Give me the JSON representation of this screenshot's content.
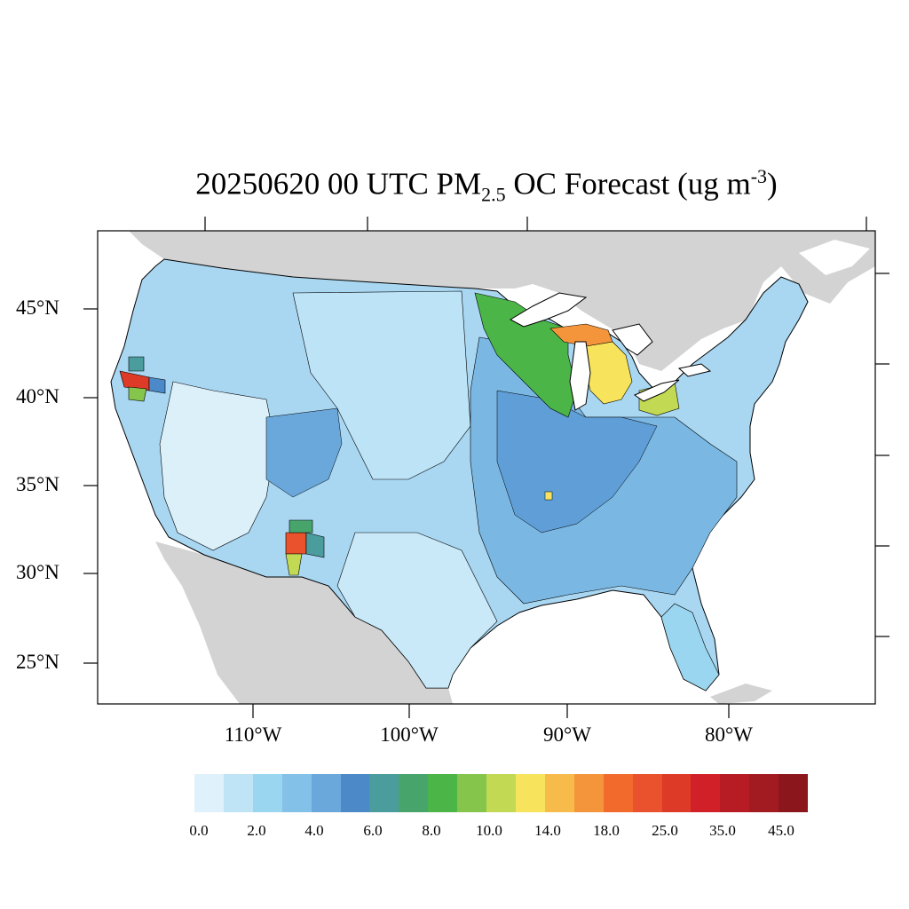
{
  "map": {
    "title_prefix": "20250620 00 UTC PM",
    "title_sub": "2.5",
    "title_mid": " OC Forecast (ug m",
    "title_sup": "-3",
    "title_suffix": ")",
    "lat_labels": [
      "45°N",
      "40°N",
      "35°N",
      "30°N",
      "25°N"
    ],
    "lon_labels": [
      "110°W",
      "100°W",
      "90°W",
      "80°W"
    ],
    "land_color": "#d3d3d3",
    "ocean_color": "#ffffff"
  },
  "legend": {
    "labels": [
      "0.0",
      "2.0",
      "4.0",
      "6.0",
      "8.0",
      "10.0",
      "14.0",
      "18.0",
      "25.0",
      "35.0",
      "45.0"
    ],
    "colors": [
      "#dff1fb",
      "#bfe4f6",
      "#9bd6f1",
      "#84c1e8",
      "#6aa8db",
      "#4b89c8",
      "#4b9c9c",
      "#47a56c",
      "#4cb548",
      "#86c54c",
      "#c2d953",
      "#f7e45c",
      "#f6bb4b",
      "#f5953b",
      "#f36a2d",
      "#e9522c",
      "#dd3a27",
      "#d12028",
      "#b71c24",
      "#a11b21",
      "#8b171c"
    ]
  }
}
